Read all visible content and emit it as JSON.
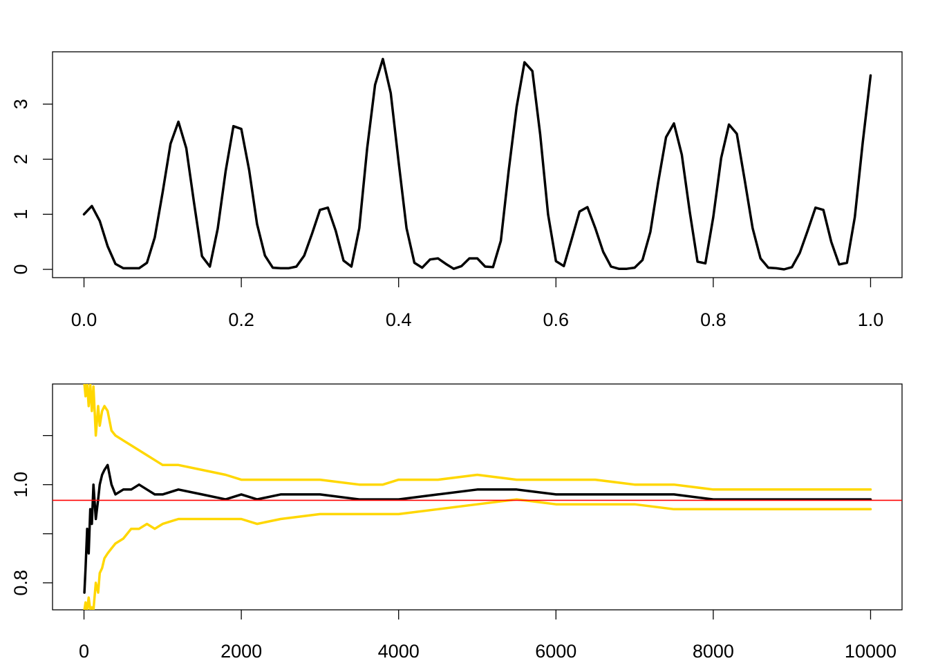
{
  "chart_data": [
    {
      "type": "line",
      "title": "",
      "xlabel": "",
      "ylabel": "",
      "xlim": [
        -0.04,
        1.04
      ],
      "ylim": [
        -0.15,
        3.95
      ],
      "xticks": [
        0.0,
        0.2,
        0.4,
        0.6,
        0.8,
        1.0
      ],
      "xtick_labels": [
        "0.0",
        "0.2",
        "0.4",
        "0.6",
        "0.8",
        "1.0"
      ],
      "yticks": [
        0,
        1,
        2,
        3
      ],
      "ytick_labels": [
        "0",
        "1",
        "2",
        "3"
      ],
      "grid": false,
      "series": [
        {
          "color": "#000000",
          "x": [
            0.0,
            0.01,
            0.02,
            0.03,
            0.04,
            0.05,
            0.06,
            0.07,
            0.08,
            0.09,
            0.1,
            0.11,
            0.12,
            0.13,
            0.14,
            0.15,
            0.16,
            0.17,
            0.18,
            0.19,
            0.2,
            0.21,
            0.22,
            0.23,
            0.24,
            0.25,
            0.26,
            0.27,
            0.28,
            0.29,
            0.3,
            0.31,
            0.32,
            0.33,
            0.34,
            0.35,
            0.36,
            0.37,
            0.38,
            0.39,
            0.4,
            0.41,
            0.42,
            0.43,
            0.44,
            0.45,
            0.46,
            0.47,
            0.48,
            0.49,
            0.5,
            0.51,
            0.52,
            0.53,
            0.54,
            0.55,
            0.56,
            0.57,
            0.58,
            0.59,
            0.6,
            0.61,
            0.62,
            0.63,
            0.64,
            0.65,
            0.66,
            0.67,
            0.68,
            0.69,
            0.7,
            0.71,
            0.72,
            0.73,
            0.74,
            0.75,
            0.76,
            0.77,
            0.78,
            0.79,
            0.8,
            0.81,
            0.82,
            0.83,
            0.84,
            0.85,
            0.86,
            0.87,
            0.88,
            0.89,
            0.9,
            0.91,
            0.92,
            0.93,
            0.94,
            0.95,
            0.96,
            0.97,
            0.98,
            0.99,
            1.0
          ],
          "y": [
            1.0,
            1.15,
            0.88,
            0.42,
            0.1,
            0.02,
            0.02,
            0.02,
            0.12,
            0.58,
            1.4,
            2.28,
            2.68,
            2.2,
            1.2,
            0.24,
            0.05,
            0.74,
            1.78,
            2.6,
            2.55,
            1.8,
            0.82,
            0.25,
            0.03,
            0.02,
            0.02,
            0.05,
            0.25,
            0.65,
            1.08,
            1.12,
            0.7,
            0.16,
            0.05,
            0.75,
            2.2,
            3.35,
            3.82,
            3.2,
            1.95,
            0.75,
            0.12,
            0.03,
            0.18,
            0.2,
            0.1,
            0.01,
            0.06,
            0.2,
            0.2,
            0.05,
            0.04,
            0.52,
            1.8,
            2.95,
            3.76,
            3.6,
            2.45,
            1.0,
            0.15,
            0.06,
            0.55,
            1.05,
            1.13,
            0.75,
            0.32,
            0.05,
            0.01,
            0.01,
            0.03,
            0.17,
            0.68,
            1.58,
            2.4,
            2.65,
            2.08,
            1.05,
            0.14,
            0.11,
            0.95,
            2.02,
            2.63,
            2.46,
            1.62,
            0.75,
            0.2,
            0.03,
            0.02,
            0.0,
            0.04,
            0.3,
            0.7,
            1.12,
            1.08,
            0.5,
            0.09,
            0.12,
            0.95,
            2.3,
            3.52
          ]
        }
      ]
    },
    {
      "type": "line",
      "title": "",
      "xlabel": "",
      "ylabel": "",
      "xlim": [
        -400,
        10400
      ],
      "ylim": [
        0.745,
        1.205
      ],
      "xticks": [
        0,
        2000,
        4000,
        6000,
        8000,
        10000
      ],
      "xtick_labels": [
        "0",
        "2000",
        "4000",
        "6000",
        "8000",
        "10000"
      ],
      "yticks": [
        0.8,
        0.9,
        1.0,
        1.1
      ],
      "ytick_labels": [
        "0.8",
        "",
        "1.0",
        ""
      ],
      "grid": false,
      "hline": {
        "y": 0.968,
        "color": "#ff0000"
      },
      "series": [
        {
          "color": "#ffd700",
          "x": [
            5,
            20,
            40,
            60,
            80,
            100,
            120,
            150,
            180,
            200,
            230,
            260,
            300,
            350,
            400,
            500,
            600,
            700,
            800,
            900,
            1000,
            1200,
            1500,
            1800,
            2000,
            2200,
            2500,
            3000,
            3500,
            3800,
            4000,
            4500,
            5000,
            5500,
            6000,
            6500,
            7000,
            7500,
            8000,
            8500,
            9000,
            9500,
            10000
          ],
          "y": [
            1.205,
            1.18,
            1.205,
            1.16,
            1.205,
            1.15,
            1.2,
            1.1,
            1.16,
            1.12,
            1.15,
            1.16,
            1.15,
            1.11,
            1.1,
            1.09,
            1.08,
            1.07,
            1.06,
            1.05,
            1.04,
            1.04,
            1.03,
            1.02,
            1.01,
            1.01,
            1.01,
            1.01,
            1.0,
            1.0,
            1.01,
            1.01,
            1.02,
            1.01,
            1.01,
            1.01,
            1.0,
            1.0,
            0.99,
            0.99,
            0.99,
            0.99,
            0.99
          ]
        },
        {
          "color": "#ffd700",
          "x": [
            5,
            20,
            40,
            60,
            80,
            100,
            120,
            150,
            180,
            200,
            230,
            260,
            300,
            350,
            400,
            500,
            600,
            700,
            800,
            900,
            1000,
            1200,
            1500,
            1800,
            2000,
            2200,
            2500,
            3000,
            3500,
            3800,
            4000,
            4500,
            5000,
            5500,
            6000,
            6500,
            7000,
            7500,
            8000,
            8500,
            9000,
            9500,
            10000
          ],
          "y": [
            0.745,
            0.76,
            0.745,
            0.77,
            0.745,
            0.75,
            0.745,
            0.8,
            0.78,
            0.82,
            0.83,
            0.85,
            0.86,
            0.87,
            0.88,
            0.89,
            0.91,
            0.91,
            0.92,
            0.91,
            0.92,
            0.93,
            0.93,
            0.93,
            0.93,
            0.92,
            0.93,
            0.94,
            0.94,
            0.94,
            0.94,
            0.95,
            0.96,
            0.97,
            0.96,
            0.96,
            0.96,
            0.95,
            0.95,
            0.95,
            0.95,
            0.95,
            0.95
          ]
        },
        {
          "color": "#000000",
          "x": [
            5,
            20,
            40,
            60,
            80,
            100,
            120,
            150,
            180,
            200,
            230,
            260,
            300,
            350,
            400,
            500,
            600,
            700,
            800,
            900,
            1000,
            1200,
            1500,
            1800,
            2000,
            2200,
            2500,
            3000,
            3500,
            3800,
            4000,
            4500,
            5000,
            5500,
            6000,
            6500,
            7000,
            7500,
            8000,
            8500,
            9000,
            9500,
            10000
          ],
          "y": [
            0.78,
            0.83,
            0.91,
            0.86,
            0.95,
            0.92,
            1.0,
            0.93,
            0.97,
            1.0,
            1.02,
            1.03,
            1.04,
            1.0,
            0.98,
            0.99,
            0.99,
            1.0,
            0.99,
            0.98,
            0.98,
            0.99,
            0.98,
            0.97,
            0.98,
            0.97,
            0.98,
            0.98,
            0.97,
            0.97,
            0.97,
            0.98,
            0.99,
            0.99,
            0.98,
            0.98,
            0.98,
            0.98,
            0.97,
            0.97,
            0.97,
            0.97,
            0.97
          ]
        }
      ]
    }
  ]
}
